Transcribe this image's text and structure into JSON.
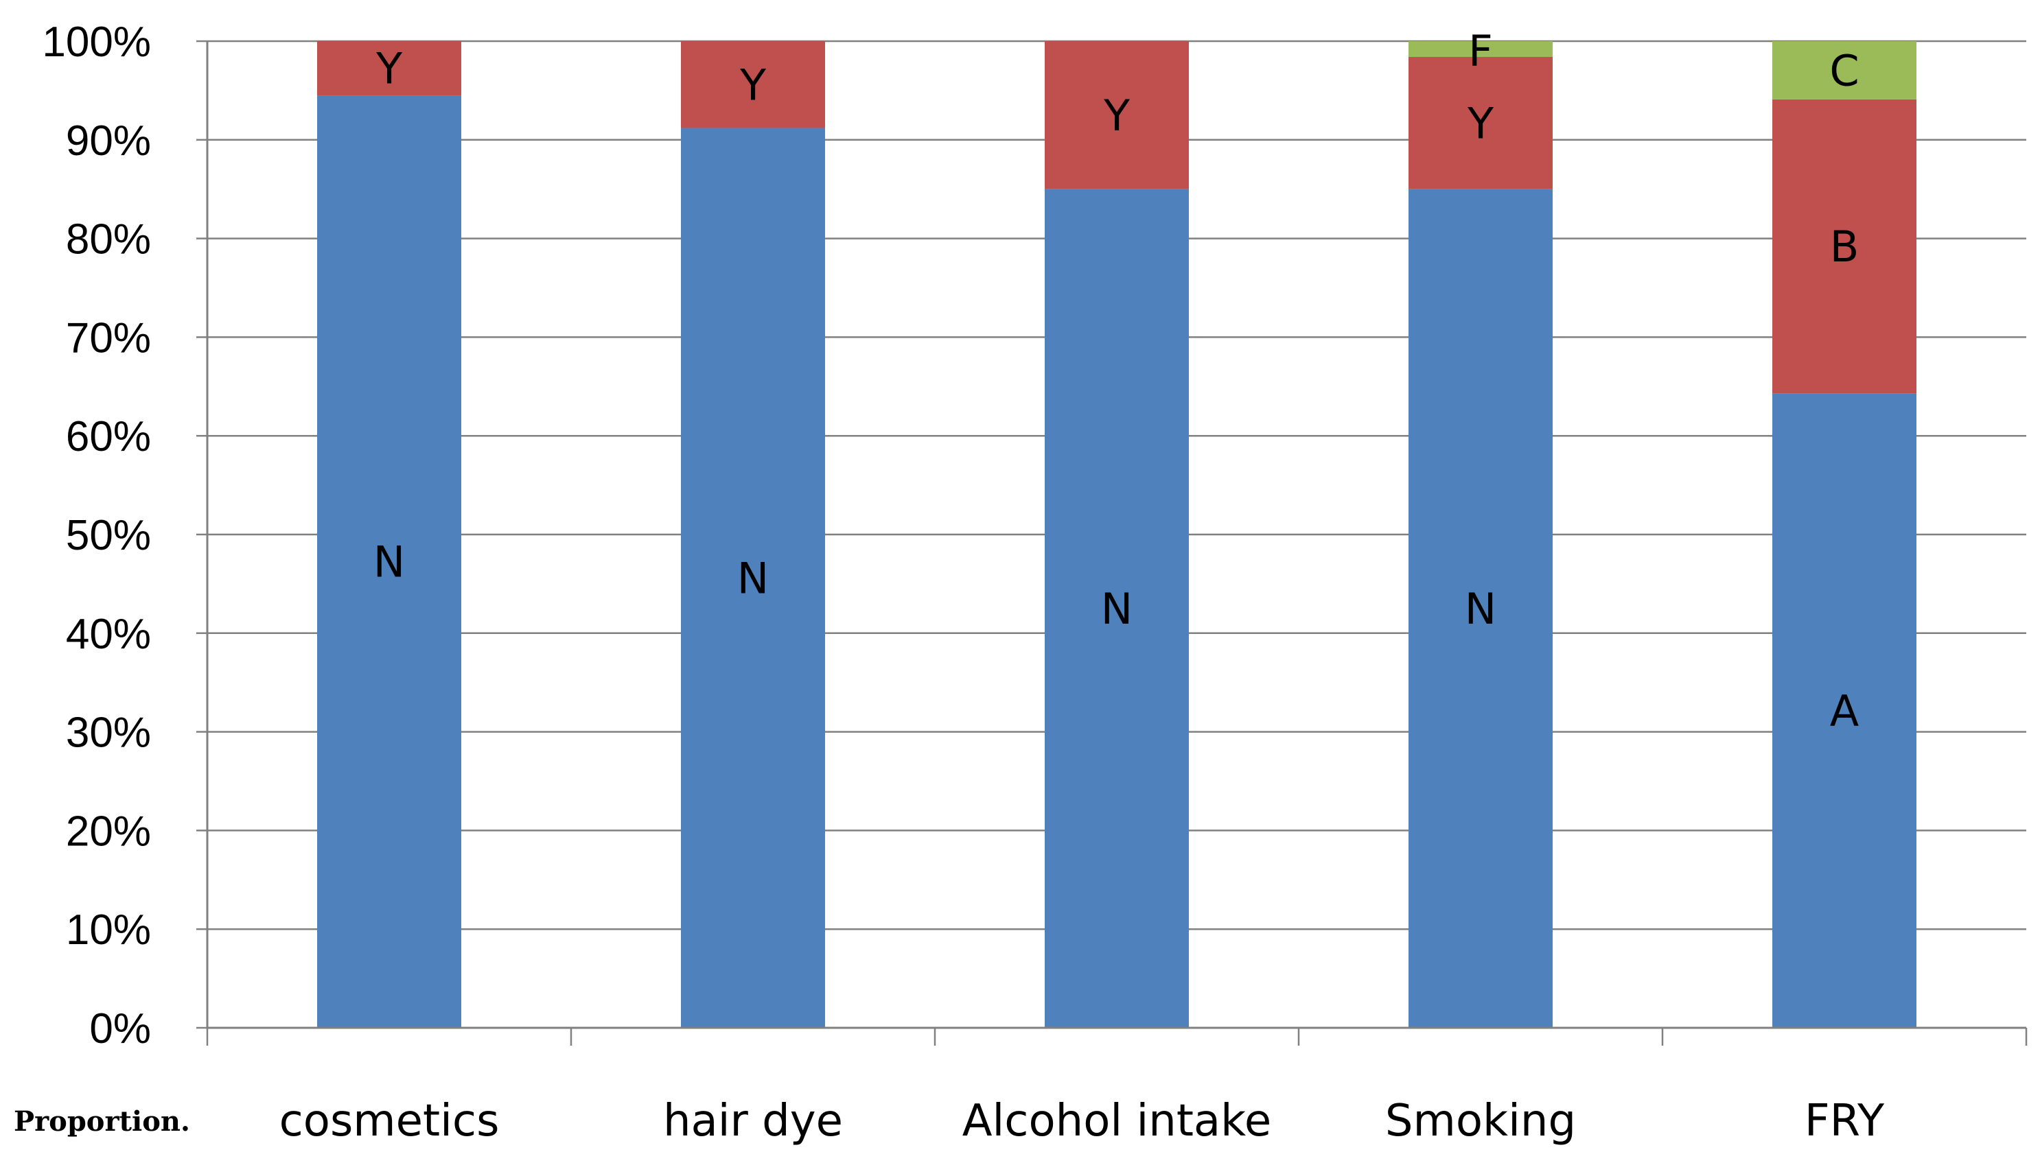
{
  "chart_data": {
    "type": "bar",
    "stacked": true,
    "percent_stacked": true,
    "categories": [
      "cosmetics",
      "hair dye",
      "Alcohol intake",
      "Smoking",
      "FRY"
    ],
    "segments": [
      [
        {
          "label": "N",
          "value": 94.5,
          "color_key": "blue"
        },
        {
          "label": "Y",
          "value": 5.5,
          "color_key": "red"
        }
      ],
      [
        {
          "label": "N",
          "value": 91.2,
          "color_key": "blue"
        },
        {
          "label": "Y",
          "value": 8.8,
          "color_key": "red"
        }
      ],
      [
        {
          "label": "N",
          "value": 85.0,
          "color_key": "blue"
        },
        {
          "label": "Y",
          "value": 15.0,
          "color_key": "red"
        }
      ],
      [
        {
          "label": "N",
          "value": 85.0,
          "color_key": "blue"
        },
        {
          "label": "Y",
          "value": 13.4,
          "color_key": "red"
        },
        {
          "label": "F",
          "value": 1.6,
          "color_key": "green"
        }
      ],
      [
        {
          "label": "A",
          "value": 64.3,
          "color_key": "blue"
        },
        {
          "label": "B",
          "value": 29.8,
          "color_key": "red"
        },
        {
          "label": "C",
          "value": 5.9,
          "color_key": "green"
        }
      ]
    ],
    "ylim": [
      0,
      100
    ],
    "yticks": [
      0,
      10,
      20,
      30,
      40,
      50,
      60,
      70,
      80,
      90,
      100
    ],
    "ytick_suffix": "%",
    "grid": true,
    "legend": "none",
    "colors": {
      "blue": "#4F81BD",
      "red": "#C0504D",
      "green": "#9BBB59",
      "grid": "#808080",
      "axis": "#808080"
    }
  },
  "footnote": "Proportion."
}
